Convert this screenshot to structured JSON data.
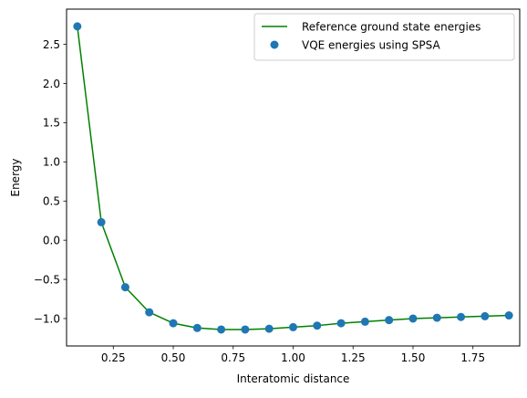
{
  "chart_data": {
    "type": "line",
    "title": "",
    "xlabel": "Interatomic distance",
    "ylabel": "Energy",
    "xlim": [
      0.055,
      1.945
    ],
    "ylim": [
      -1.35,
      2.95
    ],
    "x_ticks": [
      {
        "value": 0.25,
        "label": "0.25"
      },
      {
        "value": 0.5,
        "label": "0.50"
      },
      {
        "value": 0.75,
        "label": "0.75"
      },
      {
        "value": 1.0,
        "label": "1.00"
      },
      {
        "value": 1.25,
        "label": "1.25"
      },
      {
        "value": 1.5,
        "label": "1.50"
      },
      {
        "value": 1.75,
        "label": "1.75"
      }
    ],
    "y_ticks": [
      {
        "value": -1.0,
        "label": "−1.0"
      },
      {
        "value": -0.5,
        "label": "−0.5"
      },
      {
        "value": 0.0,
        "label": "0.0"
      },
      {
        "value": 0.5,
        "label": "0.5"
      },
      {
        "value": 1.0,
        "label": "1.0"
      },
      {
        "value": 1.5,
        "label": "1.5"
      },
      {
        "value": 2.0,
        "label": "2.0"
      },
      {
        "value": 2.5,
        "label": "2.5"
      }
    ],
    "grid": false,
    "legend_position": "top-right",
    "x": [
      0.1,
      0.2,
      0.3,
      0.4,
      0.5,
      0.6,
      0.7,
      0.8,
      0.9,
      1.0,
      1.1,
      1.2,
      1.3,
      1.4,
      1.5,
      1.6,
      1.7,
      1.8,
      1.9
    ],
    "series": [
      {
        "name": "Reference ground state energies",
        "kind": "line",
        "color": "#008000",
        "values": [
          2.73,
          0.23,
          -0.6,
          -0.92,
          -1.06,
          -1.12,
          -1.14,
          -1.14,
          -1.13,
          -1.11,
          -1.09,
          -1.06,
          -1.04,
          -1.02,
          -1.0,
          -0.99,
          -0.98,
          -0.97,
          -0.96
        ]
      },
      {
        "name": "VQE energies using SPSA",
        "kind": "scatter",
        "color": "#1f77b4",
        "values": [
          2.73,
          0.23,
          -0.6,
          -0.92,
          -1.06,
          -1.12,
          -1.14,
          -1.14,
          -1.13,
          -1.11,
          -1.09,
          -1.06,
          -1.04,
          -1.02,
          -1.0,
          -0.99,
          -0.98,
          -0.97,
          -0.96
        ]
      }
    ]
  }
}
